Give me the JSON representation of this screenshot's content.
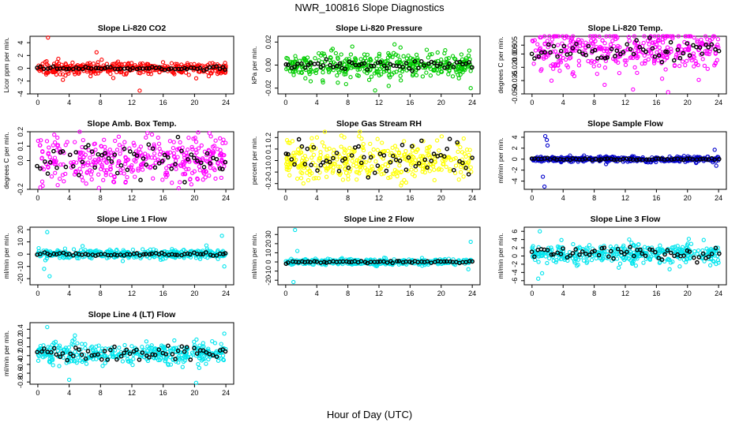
{
  "figure": {
    "title": "NWR_100816  Slope Diagnostics",
    "xlabel": "Hour of Day (UTC)"
  },
  "chart_data": [
    {
      "type": "scatter",
      "title": "Slope Li-820 CO2",
      "ylabel": "Licor ppm per min.",
      "xlim": [
        -1,
        25
      ],
      "ylim": [
        -4,
        5
      ],
      "xticks": [
        "0",
        "4",
        "8",
        "12",
        "16",
        "20",
        "24"
      ],
      "yticks": [
        "-4",
        "-2",
        "0",
        "2",
        "4"
      ],
      "ytick_values": [
        -4,
        -2,
        0,
        2,
        4
      ],
      "series": [
        {
          "color": "#ff0000",
          "spread": 0.45,
          "outliers": [
            [
              1.3,
              4.8
            ],
            [
              7.5,
              2.5
            ],
            [
              13.0,
              -3.5
            ],
            [
              3.2,
              -1.8
            ]
          ]
        },
        {
          "color": "#000000",
          "spread": 0.12,
          "mean": 0,
          "count": 60
        }
      ]
    },
    {
      "type": "scatter",
      "title": "Slope Li-820 Pressure",
      "ylabel": "kPa per min.",
      "xlim": [
        -1,
        25
      ],
      "ylim": [
        -0.025,
        0.025
      ],
      "xticks": [
        "0",
        "4",
        "8",
        "12",
        "16",
        "20",
        "24"
      ],
      "yticks": [
        "-0.02",
        "0.00",
        "0.02"
      ],
      "ytick_values": [
        -0.02,
        0,
        0.02
      ],
      "series": [
        {
          "color": "#00cc00",
          "spread": 0.006,
          "outliers": [
            [
              11.5,
              -0.022
            ],
            [
              14.0,
              0.018
            ],
            [
              23.8,
              -0.02
            ],
            [
              4.8,
              -0.015
            ]
          ]
        },
        {
          "color": "#000000",
          "spread": 0.002,
          "mean": 0,
          "count": 60
        }
      ]
    },
    {
      "type": "scatter",
      "title": "Slope Li-820 Temp.",
      "ylabel": "degrees C per min.",
      "xlim": [
        -1,
        25
      ],
      "ylim": [
        -0.05,
        0.015
      ],
      "xticks": [
        "0",
        "4",
        "8",
        "12",
        "16",
        "20",
        "24"
      ],
      "yticks": [
        "-0.050",
        "-0.035",
        "-0.020",
        "-0.005",
        "0.005"
      ],
      "ytick_values": [
        -0.05,
        -0.035,
        -0.02,
        -0.005,
        0.005
      ],
      "series": [
        {
          "color": "#ff00ff",
          "spread": 0.012,
          "outliers": [
            [
              13.0,
              -0.045
            ],
            [
              17.5,
              -0.048
            ],
            [
              2.5,
              -0.035
            ]
          ]
        },
        {
          "color": "#000000",
          "spread": 0.006,
          "mean": 0,
          "count": 60
        }
      ]
    },
    {
      "type": "scatter",
      "title": "Slope Amb. Box Temp.",
      "ylabel": "degrees C per min.",
      "xlim": [
        -1,
        25
      ],
      "ylim": [
        -0.2,
        0.2
      ],
      "xticks": [
        "0",
        "4",
        "8",
        "12",
        "16",
        "20",
        "24"
      ],
      "yticks": [
        "-0.2",
        "0.0",
        "0.1",
        "0.2"
      ],
      "ytick_values": [
        -0.2,
        0.0,
        0.1,
        0.2
      ],
      "series": [
        {
          "color": "#ff00ff",
          "spread": 0.08,
          "outliers": [
            [
              7.8,
              -0.19
            ],
            [
              14.0,
              0.19
            ]
          ]
        },
        {
          "color": "#000000",
          "spread": 0.05,
          "mean": 0,
          "count": 60
        }
      ]
    },
    {
      "type": "scatter",
      "title": "Slope Gas Stream RH",
      "ylabel": "percent per min.",
      "xlim": [
        -1,
        25
      ],
      "ylim": [
        -0.25,
        0.25
      ],
      "xticks": [
        "0",
        "4",
        "8",
        "12",
        "16",
        "20",
        "24"
      ],
      "yticks": [
        "-0.2",
        "-0.1",
        "0.0",
        "0.1",
        "0.2"
      ],
      "ytick_values": [
        -0.2,
        -0.1,
        0.0,
        0.1,
        0.2
      ],
      "series": [
        {
          "color": "#ffff00",
          "spread": 0.09,
          "outliers": []
        },
        {
          "color": "#000000",
          "spread": 0.07,
          "mean": 0,
          "count": 60
        }
      ]
    },
    {
      "type": "scatter",
      "title": "Slope Sample Flow",
      "ylabel": "ml/min per min.",
      "xlim": [
        -1,
        25
      ],
      "ylim": [
        -5.5,
        5
      ],
      "xticks": [
        "0",
        "4",
        "8",
        "12",
        "16",
        "20",
        "24"
      ],
      "yticks": [
        "-4",
        "-2",
        "0",
        "2",
        "4"
      ],
      "ytick_values": [
        -4,
        -2,
        0,
        2,
        4
      ],
      "series": [
        {
          "color": "#0000cc",
          "spread": 0.25,
          "outliers": [
            [
              1.7,
              4.2
            ],
            [
              1.9,
              3.5
            ],
            [
              1.6,
              -5.0
            ],
            [
              1.4,
              -3.2
            ],
            [
              2.0,
              2.5
            ],
            [
              23.5,
              1.7
            ],
            [
              23.7,
              -1.2
            ]
          ]
        },
        {
          "color": "#000000",
          "spread": 0.08,
          "mean": 0,
          "count": 60
        }
      ]
    },
    {
      "type": "scatter",
      "title": "Slope Line 1 Flow",
      "ylabel": "ml/min per min.",
      "xlim": [
        -1,
        25
      ],
      "ylim": [
        -25,
        22
      ],
      "xticks": [
        "0",
        "4",
        "8",
        "12",
        "16",
        "20",
        "24"
      ],
      "yticks": [
        "-20",
        "-10",
        "0",
        "10",
        "20"
      ],
      "ytick_values": [
        -20,
        -10,
        0,
        10,
        20
      ],
      "series": [
        {
          "color": "#00e5ee",
          "spread": 1.8,
          "outliers": [
            [
              1.2,
              18
            ],
            [
              0.8,
              -12
            ],
            [
              1.5,
              -18
            ],
            [
              23.5,
              15
            ],
            [
              23.8,
              -10
            ]
          ]
        },
        {
          "color": "#000000",
          "spread": 0.5,
          "mean": 0,
          "count": 60
        }
      ]
    },
    {
      "type": "scatter",
      "title": "Slope Line 2 Flow",
      "ylabel": "ml/min per min.",
      "xlim": [
        -1,
        25
      ],
      "ylim": [
        -25,
        38
      ],
      "xticks": [
        "0",
        "4",
        "8",
        "12",
        "16",
        "20",
        "24"
      ],
      "yticks": [
        "-20",
        "-10",
        "0",
        "10",
        "20",
        "30"
      ],
      "ytick_values": [
        -20,
        -10,
        0,
        10,
        20,
        30
      ],
      "series": [
        {
          "color": "#00e5ee",
          "spread": 1.5,
          "outliers": [
            [
              1.2,
              35
            ],
            [
              1.0,
              -22
            ],
            [
              1.5,
              12
            ],
            [
              23.8,
              22
            ],
            [
              23.5,
              -8
            ]
          ]
        },
        {
          "color": "#000000",
          "spread": 0.6,
          "mean": 0,
          "count": 60
        }
      ]
    },
    {
      "type": "scatter",
      "title": "Slope Line 3 Flow",
      "ylabel": "ml/min per min.",
      "xlim": [
        -1,
        25
      ],
      "ylim": [
        -7,
        7
      ],
      "xticks": [
        "0",
        "4",
        "8",
        "12",
        "16",
        "20",
        "24"
      ],
      "yticks": [
        "-6",
        "-4",
        "-2",
        "0",
        "2",
        "4",
        "6"
      ],
      "ytick_values": [
        -6,
        -4,
        -2,
        0,
        2,
        4,
        6
      ],
      "series": [
        {
          "color": "#00e5ee",
          "spread": 1.2,
          "mean": 0.5,
          "outliers": [
            [
              1.0,
              6.0
            ],
            [
              0.8,
              -5.5
            ],
            [
              1.3,
              -4.2
            ],
            [
              12.5,
              4.0
            ],
            [
              12.8,
              3.2
            ]
          ]
        },
        {
          "color": "#000000",
          "spread": 0.8,
          "mean": 0.5,
          "count": 60
        }
      ]
    },
    {
      "type": "scatter",
      "title": "Slope Line 4 (LT) Flow",
      "ylabel": "ml/min per min.",
      "xlim": [
        -1,
        25
      ],
      "ylim": [
        -0.85,
        0.55
      ],
      "xticks": [
        "0",
        "4",
        "8",
        "12",
        "16",
        "20",
        "24"
      ],
      "yticks": [
        "-0.8",
        "-0.6",
        "-0.4",
        "-0.2",
        "0.0",
        "0.2",
        "0.4"
      ],
      "ytick_values": [
        -0.8,
        -0.6,
        -0.4,
        -0.2,
        0.0,
        0.2,
        0.4
      ],
      "series": [
        {
          "color": "#00e5ee",
          "spread": 0.12,
          "mean": -0.15,
          "outliers": [
            [
              1.2,
              0.45
            ],
            [
              4.0,
              -0.75
            ],
            [
              20.2,
              -0.82
            ],
            [
              23.8,
              0.3
            ]
          ]
        },
        {
          "color": "#000000",
          "spread": 0.08,
          "mean": -0.15,
          "count": 60
        }
      ]
    }
  ]
}
